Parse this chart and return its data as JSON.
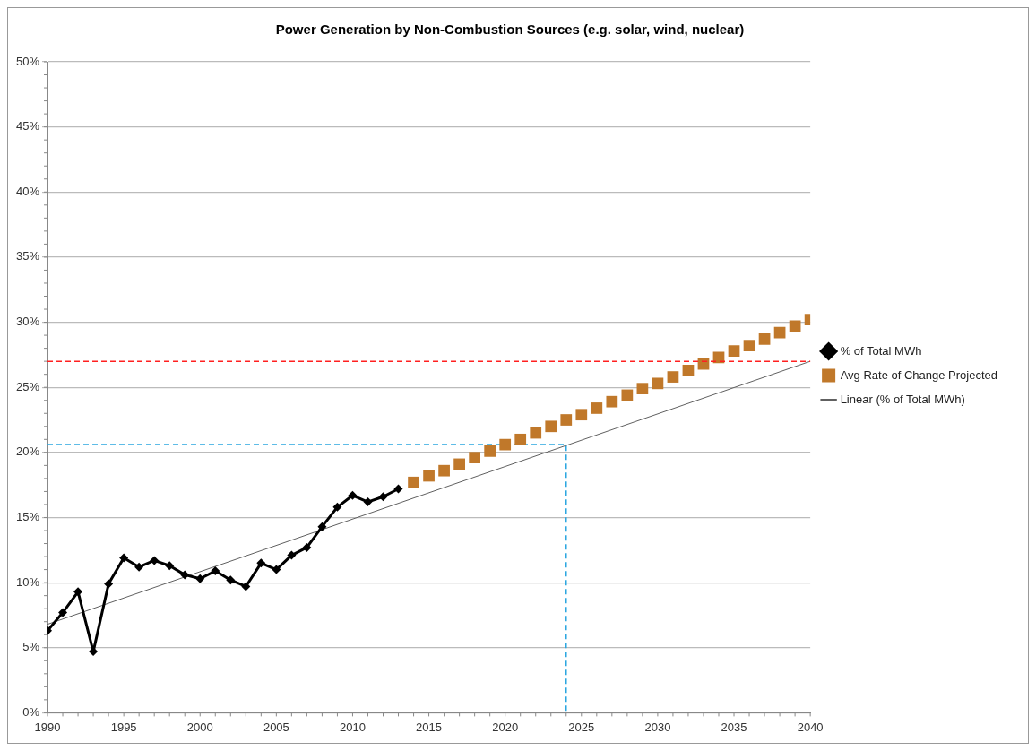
{
  "chart_data": {
    "type": "line",
    "title": "Power Generation by Non-Combustion Sources (e.g. solar, wind, nuclear)",
    "xlim": [
      1990,
      2040
    ],
    "xticks": [
      1990,
      1995,
      2000,
      2005,
      2010,
      2015,
      2020,
      2025,
      2030,
      2035,
      2040
    ],
    "ylim": [
      0,
      50
    ],
    "yticks": [
      {
        "value": 0,
        "label": "0%"
      },
      {
        "value": 5,
        "label": "5%"
      },
      {
        "value": 10,
        "label": "10%"
      },
      {
        "value": 15,
        "label": "15%"
      },
      {
        "value": 20,
        "label": "20%"
      },
      {
        "value": 25,
        "label": "25%"
      },
      {
        "value": 30,
        "label": "30%"
      },
      {
        "value": 35,
        "label": "35%"
      },
      {
        "value": 40,
        "label": "40%"
      },
      {
        "value": 45,
        "label": "45%"
      },
      {
        "value": 50,
        "label": "50%"
      }
    ],
    "grid": "y",
    "legend": "right",
    "series": [
      {
        "name": "% of Total MWh",
        "type": "line",
        "marker": "diamond",
        "color": "#000000",
        "x": [
          1990,
          1991,
          1992,
          1993,
          1994,
          1995,
          1996,
          1997,
          1998,
          1999,
          2000,
          2001,
          2002,
          2003,
          2004,
          2005,
          2006,
          2007,
          2008,
          2009,
          2010,
          2011,
          2012,
          2013
        ],
        "values": [
          6.3,
          7.7,
          9.3,
          4.7,
          9.9,
          11.9,
          11.2,
          11.7,
          11.3,
          10.6,
          10.3,
          10.9,
          10.2,
          9.7,
          11.5,
          11.0,
          12.1,
          12.7,
          14.3,
          15.8,
          16.7,
          16.2,
          16.6,
          17.2
        ]
      },
      {
        "name": "Avg Rate of Change Projected",
        "type": "scatter",
        "marker": "square",
        "color": "#c0782a",
        "x": [
          2014,
          2015,
          2016,
          2017,
          2018,
          2019,
          2020,
          2021,
          2022,
          2023,
          2024,
          2025,
          2026,
          2027,
          2028,
          2029,
          2030,
          2031,
          2032,
          2033,
          2034,
          2035,
          2036,
          2037,
          2038,
          2039,
          2040
        ],
        "values": [
          17.7,
          18.2,
          18.6,
          19.1,
          19.6,
          20.1,
          20.6,
          21.0,
          21.5,
          22.0,
          22.5,
          22.9,
          23.4,
          23.9,
          24.4,
          24.9,
          25.3,
          25.8,
          26.3,
          26.8,
          27.3,
          27.8,
          28.2,
          28.7,
          29.2,
          29.7,
          30.2
        ]
      },
      {
        "name": "Linear (% of Total MWh)",
        "type": "line",
        "marker": "none",
        "color": "#606060",
        "x": [
          1990,
          2040
        ],
        "values": [
          6.8,
          27.0
        ]
      },
      {
        "type": "line",
        "marker": "none",
        "line_style": "dashed",
        "color": "#2aa6e0",
        "x": [
          1990,
          2024,
          2024
        ],
        "values": [
          20.6,
          20.6,
          0
        ]
      }
    ],
    "ref_lines": [
      {
        "axis": "y",
        "value": 27,
        "color": "#ff2020",
        "line_style": "dashed"
      }
    ]
  }
}
